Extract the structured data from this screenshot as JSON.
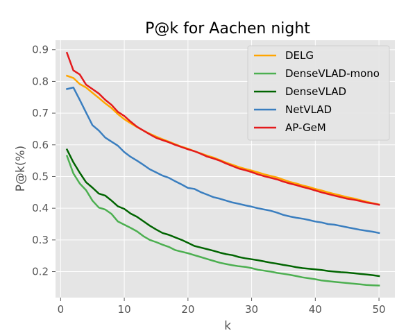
{
  "chart_data": {
    "type": "line",
    "title": "P@k for Aachen night",
    "xlabel": "k",
    "ylabel": "P@k(%)",
    "xlim": [
      -0.8,
      52.5
    ],
    "ylim": [
      0.118,
      0.93
    ],
    "xticks": [
      0,
      10,
      20,
      30,
      40,
      50
    ],
    "yticks": [
      0.2,
      0.3,
      0.4,
      0.5,
      0.6,
      0.7,
      0.8,
      0.9
    ],
    "grid": true,
    "legend_position": "top-right",
    "x": [
      1,
      2,
      3,
      4,
      5,
      6,
      7,
      8,
      9,
      10,
      11,
      12,
      13,
      14,
      15,
      16,
      17,
      18,
      19,
      20,
      21,
      22,
      23,
      24,
      25,
      26,
      27,
      28,
      29,
      30,
      31,
      32,
      33,
      34,
      35,
      36,
      37,
      38,
      39,
      40,
      41,
      42,
      43,
      44,
      45,
      46,
      47,
      48,
      49,
      50
    ],
    "series": [
      {
        "name": "DELG",
        "color": "#ffa500",
        "values": [
          0.818,
          0.811,
          0.792,
          0.781,
          0.764,
          0.748,
          0.731,
          0.716,
          0.697,
          0.681,
          0.668,
          0.656,
          0.645,
          0.635,
          0.626,
          0.618,
          0.61,
          0.602,
          0.594,
          0.588,
          0.58,
          0.573,
          0.566,
          0.56,
          0.552,
          0.544,
          0.537,
          0.53,
          0.524,
          0.519,
          0.513,
          0.507,
          0.502,
          0.497,
          0.49,
          0.483,
          0.478,
          0.472,
          0.467,
          0.461,
          0.456,
          0.45,
          0.445,
          0.44,
          0.435,
          0.431,
          0.426,
          0.421,
          0.416,
          0.412
        ]
      },
      {
        "name": "DenseVLAD-mono",
        "color": "#4caf50",
        "values": [
          0.565,
          0.51,
          0.478,
          0.457,
          0.424,
          0.402,
          0.396,
          0.382,
          0.358,
          0.348,
          0.338,
          0.327,
          0.312,
          0.3,
          0.293,
          0.285,
          0.278,
          0.268,
          0.263,
          0.258,
          0.252,
          0.246,
          0.24,
          0.234,
          0.228,
          0.224,
          0.22,
          0.217,
          0.215,
          0.211,
          0.206,
          0.203,
          0.2,
          0.196,
          0.193,
          0.19,
          0.186,
          0.182,
          0.179,
          0.176,
          0.172,
          0.17,
          0.168,
          0.166,
          0.164,
          0.162,
          0.16,
          0.158,
          0.157,
          0.156
        ]
      },
      {
        "name": "DenseVLAD",
        "color": "#006400",
        "values": [
          0.585,
          0.545,
          0.512,
          0.482,
          0.465,
          0.446,
          0.44,
          0.424,
          0.406,
          0.398,
          0.383,
          0.373,
          0.359,
          0.345,
          0.333,
          0.322,
          0.316,
          0.308,
          0.3,
          0.291,
          0.281,
          0.276,
          0.271,
          0.266,
          0.26,
          0.255,
          0.252,
          0.246,
          0.242,
          0.239,
          0.236,
          0.232,
          0.228,
          0.225,
          0.221,
          0.218,
          0.214,
          0.211,
          0.209,
          0.207,
          0.205,
          0.202,
          0.2,
          0.198,
          0.197,
          0.195,
          0.193,
          0.191,
          0.189,
          0.186
        ]
      },
      {
        "name": "NetVLAD",
        "color": "#3a7ebf",
        "values": [
          0.776,
          0.781,
          0.742,
          0.702,
          0.662,
          0.645,
          0.623,
          0.61,
          0.597,
          0.577,
          0.562,
          0.55,
          0.537,
          0.523,
          0.513,
          0.503,
          0.496,
          0.485,
          0.475,
          0.464,
          0.461,
          0.451,
          0.443,
          0.435,
          0.43,
          0.424,
          0.418,
          0.414,
          0.409,
          0.405,
          0.4,
          0.396,
          0.392,
          0.386,
          0.379,
          0.374,
          0.37,
          0.367,
          0.363,
          0.358,
          0.355,
          0.35,
          0.348,
          0.344,
          0.34,
          0.336,
          0.332,
          0.329,
          0.326,
          0.322
        ]
      },
      {
        "name": "AP-GeM",
        "color": "#e41a1c",
        "values": [
          0.89,
          0.835,
          0.822,
          0.79,
          0.776,
          0.762,
          0.742,
          0.726,
          0.704,
          0.691,
          0.673,
          0.657,
          0.645,
          0.633,
          0.622,
          0.615,
          0.608,
          0.6,
          0.593,
          0.586,
          0.58,
          0.572,
          0.563,
          0.557,
          0.55,
          0.541,
          0.533,
          0.525,
          0.52,
          0.514,
          0.507,
          0.501,
          0.496,
          0.491,
          0.484,
          0.478,
          0.473,
          0.467,
          0.462,
          0.456,
          0.45,
          0.445,
          0.44,
          0.435,
          0.43,
          0.427,
          0.423,
          0.418,
          0.415,
          0.411
        ]
      }
    ]
  }
}
